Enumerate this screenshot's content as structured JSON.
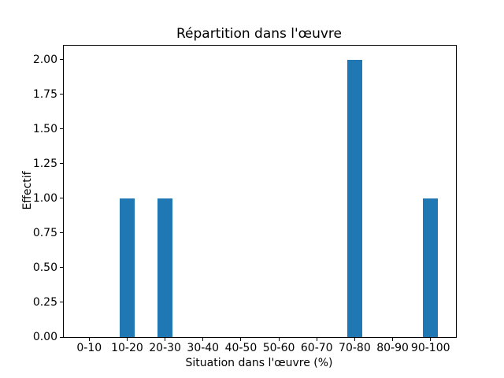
{
  "figure": {
    "background": "#ffffff",
    "bar_color": "#1f77b4",
    "axis_color": "#000000"
  },
  "chart_data": {
    "type": "bar",
    "title": "Répartition dans l'œuvre",
    "xlabel": "Situation dans l'œuvre (%)",
    "ylabel": "Effectif",
    "categories": [
      "0-10",
      "10-20",
      "20-30",
      "30-40",
      "40-50",
      "50-60",
      "60-70",
      "70-80",
      "80-90",
      "90-100"
    ],
    "values": [
      0,
      1,
      1,
      0,
      0,
      0,
      0,
      2,
      0,
      1
    ],
    "ytick_labels": [
      "0.00",
      "0.25",
      "0.50",
      "0.75",
      "1.00",
      "1.25",
      "1.50",
      "1.75",
      "2.00"
    ],
    "ylim": [
      0,
      2.1
    ],
    "xlim": [
      -0.67,
      9.67
    ],
    "bar_width_units": 0.4,
    "grid": false,
    "legend_position": "none"
  }
}
